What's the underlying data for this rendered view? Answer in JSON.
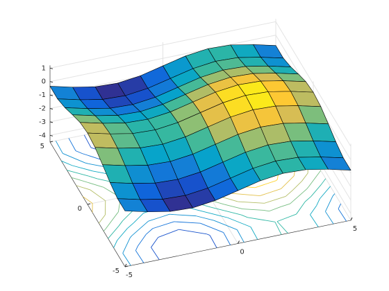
{
  "chart_data": {
    "type": "surface",
    "x": [
      -5,
      -4,
      -3,
      -2,
      -1,
      0,
      1,
      2,
      3,
      4,
      5
    ],
    "y": [
      -5,
      -4,
      -3,
      -2,
      -1,
      0,
      1,
      2,
      3,
      4,
      5
    ],
    "z": [
      [
        -0.35,
        -0.76,
        -1.08,
        -1.15,
        -0.95,
        -0.56,
        -0.17,
        0.03,
        -0.04,
        -0.36,
        -0.77
      ],
      [
        -0.36,
        -0.77,
        -1.09,
        -1.16,
        -0.96,
        -0.57,
        -0.18,
        0.02,
        -0.05,
        -0.37,
        -0.78
      ],
      [
        -0.09,
        -0.5,
        -0.82,
        -0.89,
        -0.69,
        -0.3,
        0.09,
        0.29,
        0.22,
        -0.1,
        -0.51
      ],
      [
        0.31,
        -0.1,
        -0.42,
        -0.49,
        -0.29,
        0.1,
        0.49,
        0.69,
        0.62,
        0.3,
        -0.11
      ],
      [
        0.67,
        0.26,
        -0.06,
        -0.13,
        0.07,
        0.46,
        0.85,
        1.05,
        0.98,
        0.66,
        0.25
      ],
      [
        0.81,
        0.4,
        0.08,
        0.01,
        0.21,
        0.6,
        0.99,
        1.19,
        1.12,
        0.8,
        0.39
      ],
      [
        0.67,
        0.26,
        -0.06,
        -0.13,
        0.07,
        0.46,
        0.85,
        1.05,
        0.98,
        0.66,
        0.25
      ],
      [
        0.31,
        -0.1,
        -0.42,
        -0.49,
        -0.29,
        0.1,
        0.49,
        0.69,
        0.62,
        0.3,
        -0.11
      ],
      [
        -0.09,
        -0.5,
        -0.82,
        -0.89,
        -0.69,
        -0.3,
        0.09,
        0.29,
        0.22,
        -0.1,
        -0.51
      ],
      [
        -0.36,
        -0.77,
        -1.09,
        -1.16,
        -0.96,
        -0.57,
        -0.18,
        0.02,
        -0.05,
        -0.37,
        -0.78
      ],
      [
        -0.35,
        -0.76,
        -1.08,
        -1.15,
        -0.95,
        -0.56,
        -0.17,
        0.03,
        -0.04,
        -0.36,
        -0.77
      ]
    ],
    "xlim": [
      -5,
      5
    ],
    "ylim": [
      -5,
      5
    ],
    "zlim": [
      -4.5,
      1.2
    ],
    "xticks": [
      -5,
      0,
      5
    ],
    "yticks": [
      -5,
      0,
      5
    ],
    "zticks": [
      -4,
      -3,
      -2,
      -1,
      0,
      1
    ],
    "grid": true,
    "contour": true,
    "colormap": "parula",
    "edge_color": "#000000"
  }
}
